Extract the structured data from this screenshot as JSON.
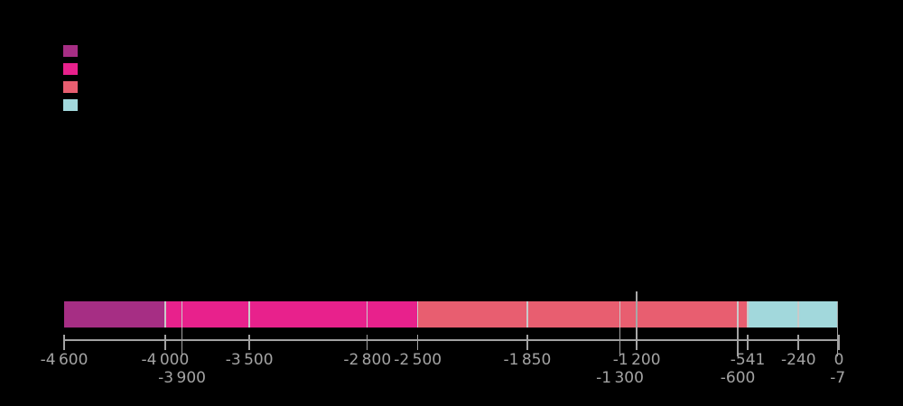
{
  "colors": {
    "purple": "#A62E84",
    "pink": "#E8218C",
    "red": "#E85E70",
    "cyan": "#A2D8DC",
    "divider": "#C9C9C9",
    "axis": "#A2A2A2",
    "label": "#A3A3A3",
    "marker": "#A8A8A8",
    "background": "#000000"
  },
  "legend": {
    "swatches": [
      {
        "name": "legend-swatch-purple",
        "color": "purple"
      },
      {
        "name": "legend-swatch-pink",
        "color": "pink"
      },
      {
        "name": "legend-swatch-red",
        "color": "red"
      },
      {
        "name": "legend-swatch-cyan",
        "color": "cyan"
      }
    ]
  },
  "chart_data": {
    "type": "bar",
    "orientation": "horizontal-stacked-timeline",
    "axis": {
      "min": -4600,
      "max": 0
    },
    "segments": [
      {
        "from": -4600,
        "to": -4000,
        "color": "purple"
      },
      {
        "from": -4000,
        "to": -3900,
        "color": "pink"
      },
      {
        "from": -3900,
        "to": -3500,
        "color": "pink"
      },
      {
        "from": -3500,
        "to": -2800,
        "color": "pink"
      },
      {
        "from": -2800,
        "to": -2500,
        "color": "pink"
      },
      {
        "from": -2500,
        "to": -1850,
        "color": "red"
      },
      {
        "from": -1850,
        "to": -1300,
        "color": "red"
      },
      {
        "from": -1300,
        "to": -1200,
        "color": "red"
      },
      {
        "from": -1200,
        "to": -600,
        "color": "red"
      },
      {
        "from": -600,
        "to": -541,
        "color": "red"
      },
      {
        "from": -541,
        "to": -240,
        "color": "cyan"
      },
      {
        "from": -240,
        "to": -7,
        "color": "cyan"
      }
    ],
    "event_marker": {
      "value": -1200
    },
    "ticks": [
      {
        "value": -4600,
        "label": "-4 600",
        "row": 1
      },
      {
        "value": -4000,
        "label": "-4 000",
        "row": 1
      },
      {
        "value": -3900,
        "label": "-3 900",
        "row": 2
      },
      {
        "value": -3500,
        "label": "-3 500",
        "row": 1
      },
      {
        "value": -2800,
        "label": "-2 800",
        "row": 1
      },
      {
        "value": -2500,
        "label": "-2 500",
        "row": 1
      },
      {
        "value": -1850,
        "label": "-1 850",
        "row": 1
      },
      {
        "value": -1300,
        "label": "-1 300",
        "row": 2
      },
      {
        "value": -1200,
        "label": "-1 200",
        "row": 1
      },
      {
        "value": -600,
        "label": "-600",
        "row": 2
      },
      {
        "value": -541,
        "label": "-541",
        "row": 1
      },
      {
        "value": -240,
        "label": "-240",
        "row": 1
      },
      {
        "value": 0,
        "label": "0",
        "row": 1
      },
      {
        "value": -7,
        "label": "-7",
        "row": 2,
        "tall": true
      }
    ]
  }
}
